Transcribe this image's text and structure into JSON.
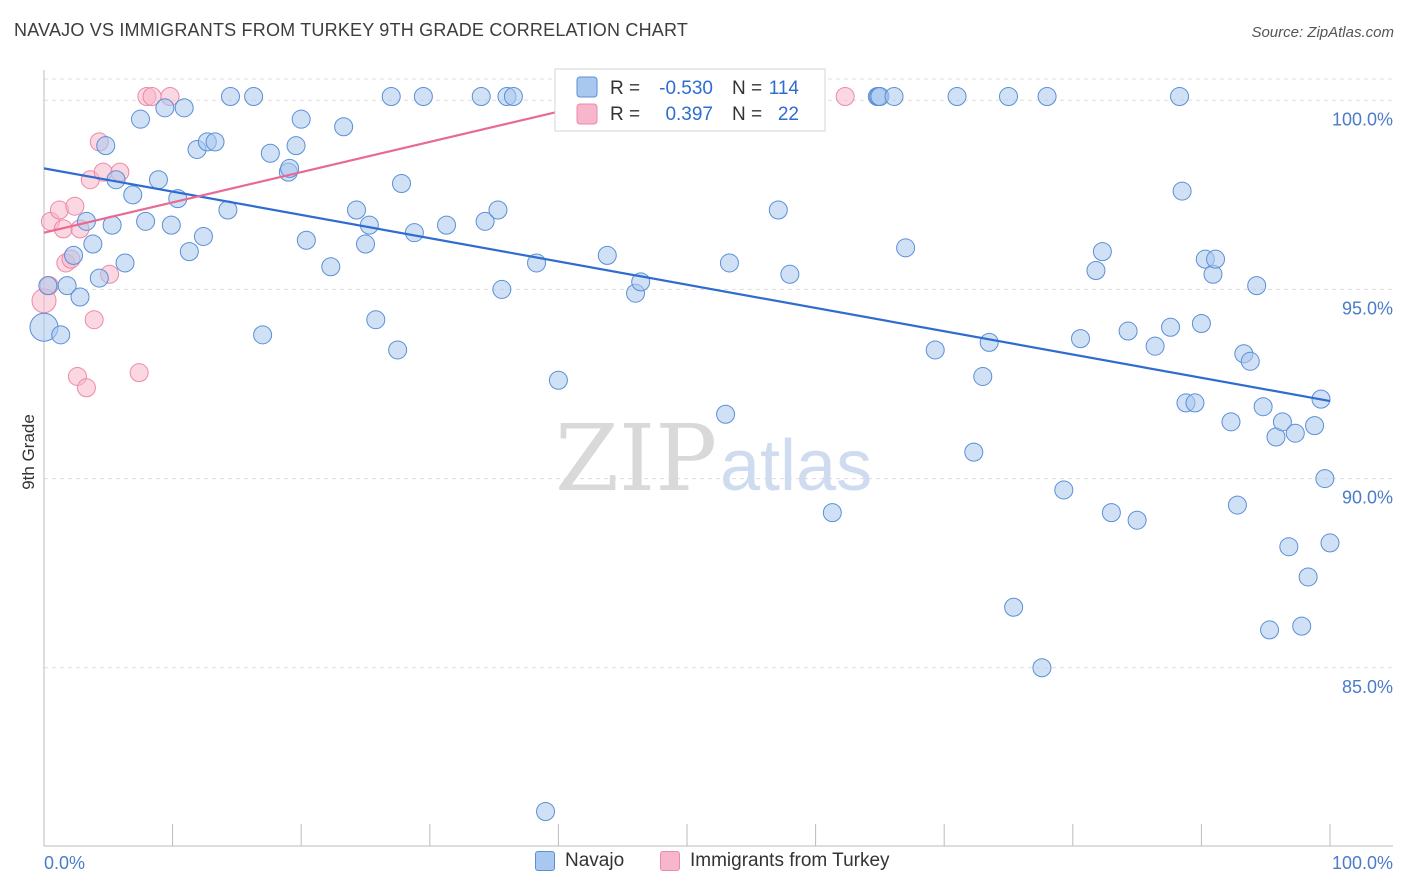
{
  "title": "NAVAJO VS IMMIGRANTS FROM TURKEY 9TH GRADE CORRELATION CHART",
  "source": "Source: ZipAtlas.com",
  "watermark": {
    "zip": "ZIP",
    "atlas": "atlas"
  },
  "colors": {
    "navajo_fill": "#a9c8ef",
    "navajo_stroke": "#5b8fd6",
    "navajo_line": "#2f6cd0",
    "turkey_fill": "#f7b6cb",
    "turkey_stroke": "#ec8aa8",
    "turkey_line": "#e86a93",
    "grid": "#dddddd",
    "tick_text": "#4a7cc8"
  },
  "legend": {
    "rows": [
      {
        "r_label": "R =",
        "r_value": "-0.530",
        "n_label": "N =",
        "n_value": "114"
      },
      {
        "r_label": "R =",
        "r_value": "0.397",
        "n_label": "N =",
        "n_value": "22"
      }
    ]
  },
  "bottom_legend": {
    "navajo": "Navajo",
    "turkey": "Immigrants from Turkey"
  },
  "chart_data": {
    "type": "scatter",
    "title": "NAVAJO VS IMMIGRANTS FROM TURKEY 9TH GRADE CORRELATION CHART",
    "xlabel": "",
    "ylabel": "9th Grade",
    "xlim": [
      0,
      100
    ],
    "ylim": [
      80.5,
      100.8
    ],
    "x_tick_labels": [
      "0.0%",
      "100.0%"
    ],
    "y_ticks": [
      {
        "value": 85.0,
        "label": "85.0%"
      },
      {
        "value": 90.0,
        "label": "90.0%"
      },
      {
        "value": 95.0,
        "label": "95.0%"
      },
      {
        "value": 100.0,
        "label": "100.0%"
      }
    ],
    "grid": true,
    "series": [
      {
        "name": "Navajo",
        "r": -0.53,
        "n": 114,
        "trend": {
          "x0": 0,
          "y0": 98.2,
          "x1": 100,
          "y1": 92.05
        },
        "points": [
          [
            0,
            94.0,
            14
          ],
          [
            0.3,
            95.1,
            9
          ],
          [
            1.3,
            93.8,
            9
          ],
          [
            1.8,
            95.1,
            9
          ],
          [
            2.3,
            95.9,
            9
          ],
          [
            2.8,
            94.8,
            9
          ],
          [
            3.3,
            96.8,
            9
          ],
          [
            3.8,
            96.2,
            9
          ],
          [
            4.3,
            95.3,
            9
          ],
          [
            4.8,
            98.8,
            9
          ],
          [
            5.6,
            97.9,
            9
          ],
          [
            5.3,
            96.7,
            9
          ],
          [
            6.3,
            95.7,
            9
          ],
          [
            6.9,
            97.5,
            9
          ],
          [
            7.5,
            99.5,
            9
          ],
          [
            7.9,
            96.8,
            9
          ],
          [
            8.9,
            97.9,
            9
          ],
          [
            9.4,
            99.8,
            9
          ],
          [
            9.9,
            96.7,
            9
          ],
          [
            10.4,
            97.4,
            9
          ],
          [
            10.9,
            99.8,
            9
          ],
          [
            11.3,
            96.0,
            9
          ],
          [
            11.9,
            98.7,
            9
          ],
          [
            12.4,
            96.4,
            9
          ],
          [
            12.7,
            98.9,
            9
          ],
          [
            13.3,
            98.9,
            9
          ],
          [
            14.3,
            97.1,
            9
          ],
          [
            14.5,
            100.1,
            9
          ],
          [
            16.3,
            100.1,
            9
          ],
          [
            17.0,
            93.8,
            9
          ],
          [
            17.6,
            98.6,
            9
          ],
          [
            19.0,
            98.1,
            9
          ],
          [
            19.1,
            98.2,
            9
          ],
          [
            19.6,
            98.8,
            9
          ],
          [
            20.0,
            99.5,
            9
          ],
          [
            20.4,
            96.3,
            9
          ],
          [
            22.3,
            95.6,
            9
          ],
          [
            23.3,
            99.3,
            9
          ],
          [
            24.3,
            97.1,
            9
          ],
          [
            25.0,
            96.2,
            9
          ],
          [
            25.3,
            96.7,
            9
          ],
          [
            25.8,
            94.2,
            9
          ],
          [
            27.0,
            100.1,
            9
          ],
          [
            27.5,
            93.4,
            9
          ],
          [
            27.8,
            97.8,
            9
          ],
          [
            28.8,
            96.5,
            9
          ],
          [
            29.5,
            100.1,
            9
          ],
          [
            31.3,
            96.7,
            9
          ],
          [
            34.0,
            100.1,
            9
          ],
          [
            34.3,
            96.8,
            9
          ],
          [
            35.3,
            97.1,
            9
          ],
          [
            35.6,
            95.0,
            9
          ],
          [
            36.0,
            100.1,
            9
          ],
          [
            36.5,
            100.1,
            9
          ],
          [
            38.3,
            95.7,
            9
          ],
          [
            40.0,
            92.6,
            9
          ],
          [
            43.8,
            95.9,
            9
          ],
          [
            46.0,
            94.9,
            9
          ],
          [
            46.4,
            95.2,
            9
          ],
          [
            53.0,
            91.7,
            9
          ],
          [
            53.3,
            95.7,
            9
          ],
          [
            57.1,
            97.1,
            9
          ],
          [
            58.0,
            95.4,
            9
          ],
          [
            61.3,
            89.1,
            9
          ],
          [
            64.8,
            100.1,
            9
          ],
          [
            64.9,
            100.1,
            9
          ],
          [
            65.0,
            100.1,
            9
          ],
          [
            66.1,
            100.1,
            9
          ],
          [
            67.0,
            96.1,
            9
          ],
          [
            69.3,
            93.4,
            9
          ],
          [
            71.0,
            100.1,
            9
          ],
          [
            72.3,
            90.7,
            9
          ],
          [
            73.0,
            92.7,
            9
          ],
          [
            73.5,
            93.6,
            9
          ],
          [
            75.0,
            100.1,
            9
          ],
          [
            75.4,
            86.6,
            9
          ],
          [
            77.6,
            85.0,
            9
          ],
          [
            78.0,
            100.1,
            9
          ],
          [
            79.3,
            89.7,
            9
          ],
          [
            80.6,
            93.7,
            9
          ],
          [
            81.8,
            95.5,
            9
          ],
          [
            82.3,
            96.0,
            9
          ],
          [
            83.0,
            89.1,
            9
          ],
          [
            84.3,
            93.9,
            9
          ],
          [
            85.0,
            88.9,
            9
          ],
          [
            86.4,
            93.5,
            9
          ],
          [
            87.6,
            94.0,
            9
          ],
          [
            88.3,
            100.1,
            9
          ],
          [
            88.5,
            97.6,
            9
          ],
          [
            88.8,
            92.0,
            9
          ],
          [
            89.5,
            92.0,
            9
          ],
          [
            90.0,
            94.1,
            9
          ],
          [
            90.3,
            95.8,
            9
          ],
          [
            90.9,
            95.4,
            9
          ],
          [
            91.1,
            95.8,
            9
          ],
          [
            92.3,
            91.5,
            9
          ],
          [
            92.8,
            89.3,
            9
          ],
          [
            93.3,
            93.3,
            9
          ],
          [
            93.8,
            93.1,
            9
          ],
          [
            94.3,
            95.1,
            9
          ],
          [
            94.8,
            91.9,
            9
          ],
          [
            95.3,
            86.0,
            9
          ],
          [
            95.8,
            91.1,
            9
          ],
          [
            96.3,
            91.5,
            9
          ],
          [
            96.8,
            88.2,
            9
          ],
          [
            97.3,
            91.2,
            9
          ],
          [
            97.8,
            86.1,
            9
          ],
          [
            98.3,
            87.4,
            9
          ],
          [
            98.8,
            91.4,
            9
          ],
          [
            99.3,
            92.1,
            9
          ],
          [
            99.6,
            90.0,
            9
          ],
          [
            100.0,
            88.3,
            9
          ],
          [
            39.0,
            81.2,
            9
          ]
        ]
      },
      {
        "name": "Immigrants from Turkey",
        "r": 0.397,
        "n": 22,
        "trend": {
          "x0": 0,
          "y0": 96.5,
          "x1": 52.5,
          "y1": 100.7
        },
        "points": [
          [
            0,
            94.7,
            12
          ],
          [
            0.4,
            95.1,
            9
          ],
          [
            0.5,
            96.8,
            9
          ],
          [
            1.2,
            97.1,
            9
          ],
          [
            1.5,
            96.6,
            9
          ],
          [
            1.7,
            95.7,
            9
          ],
          [
            2.1,
            95.8,
            9
          ],
          [
            2.4,
            97.2,
            9
          ],
          [
            2.8,
            96.6,
            9
          ],
          [
            2.6,
            92.7,
            9
          ],
          [
            3.3,
            92.4,
            9
          ],
          [
            3.6,
            97.9,
            9
          ],
          [
            3.9,
            94.2,
            9
          ],
          [
            4.3,
            98.9,
            9
          ],
          [
            4.6,
            98.1,
            9
          ],
          [
            5.1,
            95.4,
            9
          ],
          [
            5.9,
            98.1,
            9
          ],
          [
            7.4,
            92.8,
            9
          ],
          [
            8.0,
            100.1,
            9
          ],
          [
            8.4,
            100.1,
            9
          ],
          [
            9.8,
            100.1,
            9
          ],
          [
            62.3,
            100.1,
            9
          ]
        ]
      }
    ]
  }
}
